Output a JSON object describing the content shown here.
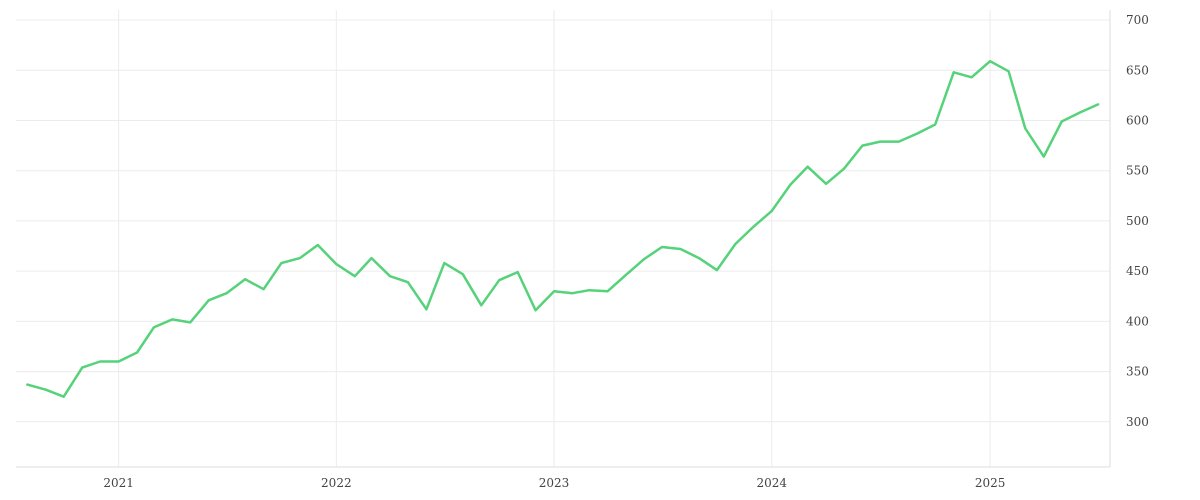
{
  "chart_data": {
    "type": "line",
    "title": "",
    "xlabel": "",
    "ylabel": "",
    "x_ticks": [
      "2021",
      "2022",
      "2023",
      "2024",
      "2025"
    ],
    "y_ticks": [
      300,
      350,
      400,
      450,
      500,
      550,
      600,
      650,
      700
    ],
    "ylim": [
      255,
      710
    ],
    "xlim": [
      "2020-07-13",
      "2025-07-21"
    ],
    "y_axis_position": "right",
    "grid": true,
    "legend": "none",
    "series": [
      {
        "color": "#55d27a",
        "x": [
          "2020-08-01",
          "2020-09-01",
          "2020-10-01",
          "2020-11-01",
          "2020-12-01",
          "2021-01-01",
          "2021-02-01",
          "2021-03-01",
          "2021-04-01",
          "2021-05-01",
          "2021-06-01",
          "2021-07-01",
          "2021-08-01",
          "2021-09-01",
          "2021-10-01",
          "2021-11-01",
          "2021-12-01",
          "2022-01-01",
          "2022-02-01",
          "2022-03-01",
          "2022-04-01",
          "2022-05-01",
          "2022-06-01",
          "2022-07-01",
          "2022-08-01",
          "2022-09-01",
          "2022-10-01",
          "2022-11-01",
          "2022-12-01",
          "2023-01-01",
          "2023-02-01",
          "2023-03-01",
          "2023-04-01",
          "2023-05-01",
          "2023-06-01",
          "2023-07-01",
          "2023-08-01",
          "2023-09-01",
          "2023-10-01",
          "2023-11-01",
          "2023-12-01",
          "2024-01-01",
          "2024-02-01",
          "2024-03-01",
          "2024-04-01",
          "2024-05-01",
          "2024-06-01",
          "2024-07-01",
          "2024-08-01",
          "2024-09-01",
          "2024-10-01",
          "2024-11-01",
          "2024-12-01",
          "2025-01-01",
          "2025-02-01",
          "2025-03-01",
          "2025-04-01",
          "2025-05-01",
          "2025-06-01",
          "2025-07-01"
        ],
        "values": [
          337,
          332,
          325,
          354,
          360,
          360,
          369,
          394,
          402,
          399,
          421,
          428,
          442,
          432,
          458,
          463,
          476,
          457,
          445,
          463,
          445,
          439,
          412,
          458,
          447,
          416,
          441,
          449,
          411,
          430,
          428,
          431,
          430,
          446,
          462,
          474,
          472,
          463,
          451,
          477,
          494,
          510,
          536,
          554,
          537,
          552,
          575,
          579,
          579,
          587,
          596,
          648,
          643,
          659,
          649,
          592,
          564,
          599,
          608,
          616
        ]
      }
    ]
  }
}
